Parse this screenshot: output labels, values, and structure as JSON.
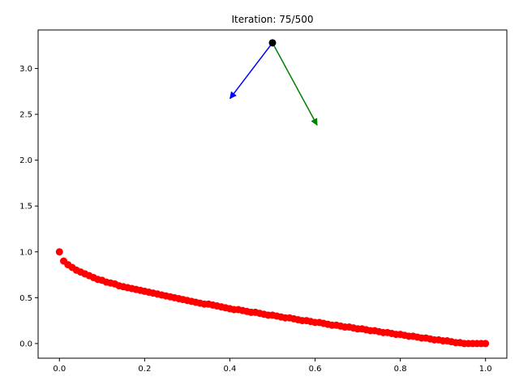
{
  "chart_data": {
    "type": "scatter",
    "title": "Iteration: 75/500",
    "xlabel": "",
    "ylabel": "",
    "xlim": [
      -0.05,
      1.05
    ],
    "ylim": [
      -0.16,
      3.42
    ],
    "grid": false,
    "legend": "none",
    "x_ticks": [
      {
        "value": 0.0,
        "label": "0.0"
      },
      {
        "value": 0.2,
        "label": "0.2"
      },
      {
        "value": 0.4,
        "label": "0.4"
      },
      {
        "value": 0.6,
        "label": "0.6"
      },
      {
        "value": 0.8,
        "label": "0.8"
      },
      {
        "value": 1.0,
        "label": "1.0"
      }
    ],
    "y_ticks": [
      {
        "value": 0.0,
        "label": "0.0"
      },
      {
        "value": 0.5,
        "label": "0.5"
      },
      {
        "value": 1.0,
        "label": "1.0"
      },
      {
        "value": 1.5,
        "label": "1.5"
      },
      {
        "value": 2.0,
        "label": "2.0"
      },
      {
        "value": 2.5,
        "label": "2.5"
      },
      {
        "value": 3.0,
        "label": "3.0"
      }
    ],
    "series": [
      {
        "name": "curve-points",
        "color": "#ff0000",
        "curve": "y = 1 - sqrt(x)*0.65 - 0.35*x (approximate fit of plotted points)",
        "x": [
          0.0,
          0.01,
          0.02,
          0.03,
          0.04,
          0.05,
          0.06,
          0.07,
          0.08,
          0.09,
          0.1,
          0.11,
          0.12,
          0.13,
          0.14,
          0.15,
          0.16,
          0.17,
          0.18,
          0.19,
          0.2,
          0.21,
          0.22,
          0.23,
          0.24,
          0.25,
          0.26,
          0.27,
          0.28,
          0.29,
          0.3,
          0.31,
          0.32,
          0.33,
          0.34,
          0.35,
          0.36,
          0.37,
          0.38,
          0.39,
          0.4,
          0.41,
          0.42,
          0.43,
          0.44,
          0.45,
          0.46,
          0.47,
          0.48,
          0.49,
          0.5,
          0.51,
          0.52,
          0.53,
          0.54,
          0.55,
          0.56,
          0.57,
          0.58,
          0.59,
          0.6,
          0.61,
          0.62,
          0.63,
          0.64,
          0.65,
          0.66,
          0.67,
          0.68,
          0.69,
          0.7,
          0.71,
          0.72,
          0.73,
          0.74,
          0.75,
          0.76,
          0.77,
          0.78,
          0.79,
          0.8,
          0.81,
          0.82,
          0.83,
          0.84,
          0.85,
          0.86,
          0.87,
          0.88,
          0.89,
          0.9,
          0.91,
          0.92,
          0.93,
          0.94,
          0.95,
          0.96,
          0.97,
          0.98,
          0.99,
          1.0
        ],
        "y": [
          1.0,
          0.9,
          0.86,
          0.83,
          0.8,
          0.78,
          0.76,
          0.74,
          0.72,
          0.7,
          0.69,
          0.67,
          0.66,
          0.65,
          0.63,
          0.62,
          0.61,
          0.6,
          0.59,
          0.58,
          0.57,
          0.56,
          0.55,
          0.54,
          0.53,
          0.52,
          0.51,
          0.5,
          0.49,
          0.48,
          0.47,
          0.46,
          0.45,
          0.44,
          0.43,
          0.43,
          0.42,
          0.41,
          0.4,
          0.39,
          0.38,
          0.37,
          0.37,
          0.36,
          0.35,
          0.34,
          0.34,
          0.33,
          0.32,
          0.31,
          0.31,
          0.3,
          0.29,
          0.28,
          0.28,
          0.27,
          0.26,
          0.25,
          0.25,
          0.24,
          0.23,
          0.23,
          0.22,
          0.21,
          0.2,
          0.2,
          0.19,
          0.18,
          0.18,
          0.17,
          0.16,
          0.16,
          0.15,
          0.14,
          0.14,
          0.13,
          0.12,
          0.12,
          0.11,
          0.1,
          0.1,
          0.09,
          0.08,
          0.08,
          0.07,
          0.06,
          0.06,
          0.05,
          0.04,
          0.04,
          0.03,
          0.03,
          0.02,
          0.01,
          0.01,
          0.0,
          0.0,
          0.0,
          0.0,
          0.0,
          0.0
        ]
      }
    ],
    "current_point": {
      "x": 0.5,
      "y": 3.28,
      "color": "#000000"
    },
    "arrows": [
      {
        "name": "blue-arrow",
        "color": "#0000ff",
        "from": [
          0.5,
          3.28
        ],
        "to": [
          0.4,
          2.67
        ]
      },
      {
        "name": "green-arrow",
        "color": "#008000",
        "from": [
          0.5,
          3.28
        ],
        "to": [
          0.605,
          2.38
        ]
      }
    ]
  }
}
